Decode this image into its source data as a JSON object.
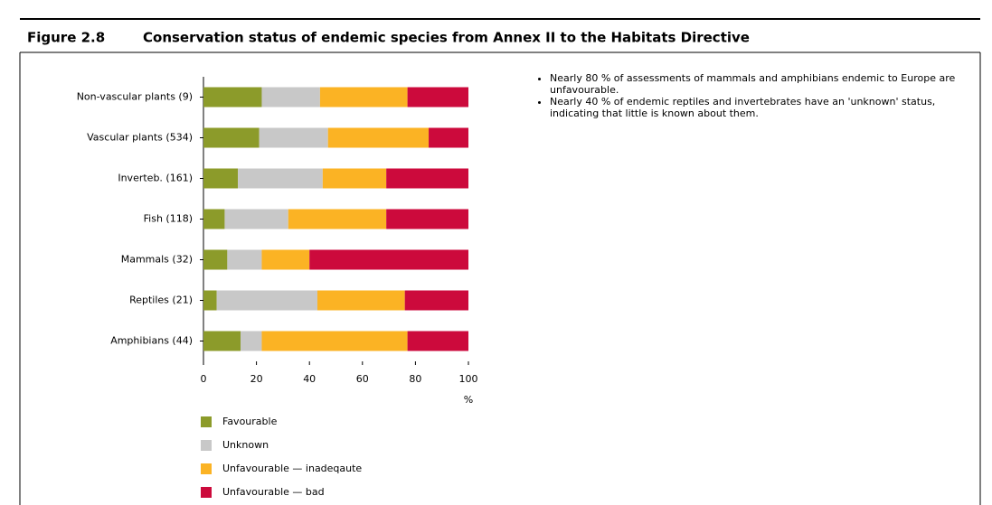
{
  "chart_data": {
    "type": "bar",
    "orientation": "horizontal",
    "stacked": true,
    "figure_label": "Figure 2.8",
    "title": "Conservation status of endemic species from Annex II to the Habitats Directive",
    "notes": [
      "Nearly 80 % of assessments of mammals and amphibians endemic to Europe are unfavourable.",
      "Nearly 40 % of endemic reptiles and invertebrates have an 'unknown' status, indicating that little is known about them."
    ],
    "xlabel": "%",
    "categories": [
      "Non-vascular plants (9)",
      "Vascular plants (534)",
      "Inverteb. (161)",
      "Fish (118)",
      "Mammals (32)",
      "Reptiles (21)",
      "Amphibians (44)"
    ],
    "series": [
      {
        "name": "Favourable",
        "color": "#8c9b2a",
        "values": [
          22,
          21,
          13,
          8,
          9,
          5,
          14
        ]
      },
      {
        "name": "Unknown",
        "color": "#c8c8c8",
        "values": [
          22,
          26,
          32,
          24,
          13,
          38,
          8
        ]
      },
      {
        "name": "Unfavourable — inadeqaute",
        "color": "#fbb324",
        "values": [
          33,
          38,
          24,
          37,
          18,
          33,
          55
        ]
      },
      {
        "name": "Unfavourable — bad",
        "color": "#cc0a3c",
        "values": [
          23,
          15,
          31,
          31,
          60,
          24,
          23
        ]
      }
    ],
    "xlim": [
      0,
      100
    ],
    "xticks": [
      0,
      20,
      40,
      60,
      80,
      100
    ],
    "legend": "bottom"
  }
}
